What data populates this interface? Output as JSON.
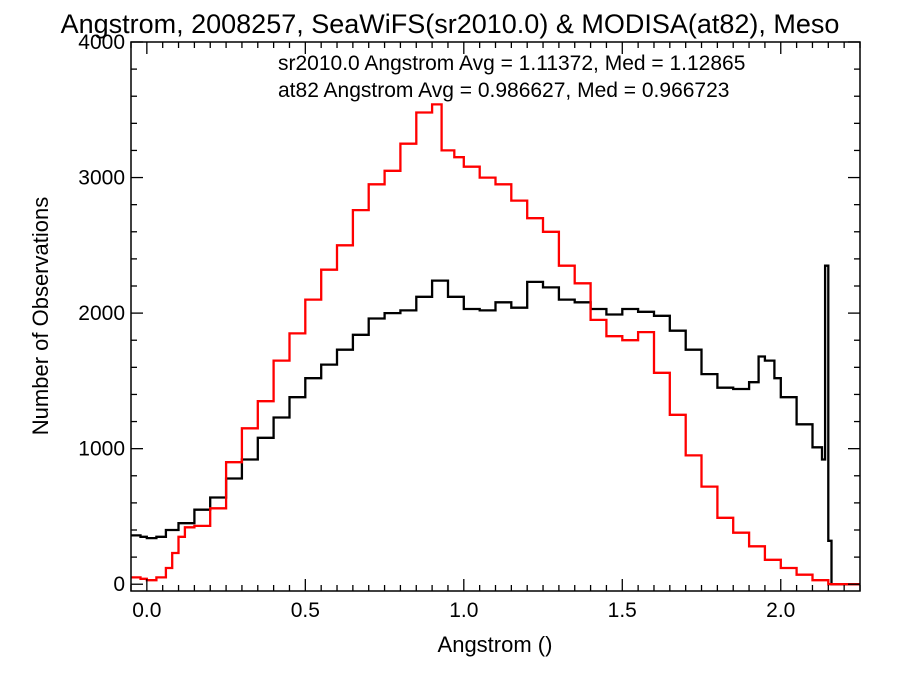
{
  "chart_data": {
    "type": "line",
    "title": "Angstrom, 2008257, SeaWiFS(sr2010.0) & MODISA(at82), Meso",
    "xlabel": "Angstrom ()",
    "ylabel": "Number of Observations",
    "xlim": [
      -0.05,
      2.25
    ],
    "ylim": [
      -50,
      4000
    ],
    "xticks": [
      {
        "value": 0.0,
        "label": "0.0"
      },
      {
        "value": 0.5,
        "label": "0.5"
      },
      {
        "value": 1.0,
        "label": "1.0"
      },
      {
        "value": 1.5,
        "label": "1.5"
      },
      {
        "value": 2.0,
        "label": "2.0"
      }
    ],
    "yticks": [
      {
        "value": 0,
        "label": "0"
      },
      {
        "value": 1000,
        "label": "1000"
      },
      {
        "value": 2000,
        "label": "2000"
      },
      {
        "value": 3000,
        "label": "3000"
      },
      {
        "value": 4000,
        "label": "4000"
      }
    ],
    "legend": [
      {
        "text": "sr2010.0 Angstrom Avg = 1.11372, Med = 1.12865",
        "color": "#000000"
      },
      {
        "text": "at82 Angstrom Avg = 0.986627, Med = 0.966723",
        "color": "#ff0000"
      }
    ],
    "legend_position": "top-right",
    "grid": false,
    "series": [
      {
        "color": "#000000",
        "points": [
          [
            -0.05,
            360
          ],
          [
            -0.02,
            350
          ],
          [
            0.0,
            340
          ],
          [
            0.03,
            350
          ],
          [
            0.06,
            400
          ],
          [
            0.1,
            450
          ],
          [
            0.15,
            550
          ],
          [
            0.2,
            640
          ],
          [
            0.25,
            780
          ],
          [
            0.3,
            920
          ],
          [
            0.35,
            1080
          ],
          [
            0.4,
            1230
          ],
          [
            0.45,
            1380
          ],
          [
            0.5,
            1520
          ],
          [
            0.55,
            1620
          ],
          [
            0.6,
            1730
          ],
          [
            0.65,
            1840
          ],
          [
            0.7,
            1960
          ],
          [
            0.75,
            2000
          ],
          [
            0.8,
            2020
          ],
          [
            0.85,
            2120
          ],
          [
            0.9,
            2240
          ],
          [
            0.95,
            2120
          ],
          [
            1.0,
            2030
          ],
          [
            1.05,
            2020
          ],
          [
            1.1,
            2080
          ],
          [
            1.15,
            2040
          ],
          [
            1.2,
            2230
          ],
          [
            1.25,
            2190
          ],
          [
            1.3,
            2100
          ],
          [
            1.35,
            2080
          ],
          [
            1.4,
            2030
          ],
          [
            1.45,
            1990
          ],
          [
            1.5,
            2030
          ],
          [
            1.55,
            2010
          ],
          [
            1.6,
            1980
          ],
          [
            1.65,
            1870
          ],
          [
            1.7,
            1730
          ],
          [
            1.75,
            1550
          ],
          [
            1.8,
            1450
          ],
          [
            1.85,
            1440
          ],
          [
            1.9,
            1490
          ],
          [
            1.93,
            1680
          ],
          [
            1.95,
            1650
          ],
          [
            1.98,
            1520
          ],
          [
            2.0,
            1380
          ],
          [
            2.05,
            1180
          ],
          [
            2.1,
            1010
          ],
          [
            2.13,
            920
          ],
          [
            2.14,
            2350
          ],
          [
            2.15,
            320
          ],
          [
            2.16,
            0
          ],
          [
            2.25,
            0
          ]
        ]
      },
      {
        "color": "#ff0000",
        "points": [
          [
            -0.05,
            50
          ],
          [
            -0.02,
            40
          ],
          [
            0.0,
            30
          ],
          [
            0.03,
            50
          ],
          [
            0.06,
            120
          ],
          [
            0.08,
            230
          ],
          [
            0.1,
            350
          ],
          [
            0.12,
            420
          ],
          [
            0.15,
            430
          ],
          [
            0.2,
            560
          ],
          [
            0.25,
            900
          ],
          [
            0.3,
            1150
          ],
          [
            0.35,
            1350
          ],
          [
            0.4,
            1650
          ],
          [
            0.45,
            1850
          ],
          [
            0.5,
            2100
          ],
          [
            0.55,
            2320
          ],
          [
            0.6,
            2500
          ],
          [
            0.65,
            2760
          ],
          [
            0.7,
            2950
          ],
          [
            0.75,
            3050
          ],
          [
            0.8,
            3250
          ],
          [
            0.85,
            3480
          ],
          [
            0.9,
            3540
          ],
          [
            0.93,
            3200
          ],
          [
            0.97,
            3150
          ],
          [
            1.0,
            3080
          ],
          [
            1.05,
            3000
          ],
          [
            1.1,
            2950
          ],
          [
            1.15,
            2830
          ],
          [
            1.2,
            2700
          ],
          [
            1.25,
            2600
          ],
          [
            1.3,
            2350
          ],
          [
            1.35,
            2220
          ],
          [
            1.4,
            1950
          ],
          [
            1.45,
            1830
          ],
          [
            1.5,
            1800
          ],
          [
            1.55,
            1860
          ],
          [
            1.6,
            1560
          ],
          [
            1.65,
            1250
          ],
          [
            1.7,
            950
          ],
          [
            1.75,
            720
          ],
          [
            1.8,
            490
          ],
          [
            1.85,
            380
          ],
          [
            1.9,
            280
          ],
          [
            1.95,
            180
          ],
          [
            2.0,
            120
          ],
          [
            2.05,
            70
          ],
          [
            2.1,
            30
          ],
          [
            2.15,
            0
          ],
          [
            2.25,
            0
          ]
        ]
      }
    ]
  }
}
